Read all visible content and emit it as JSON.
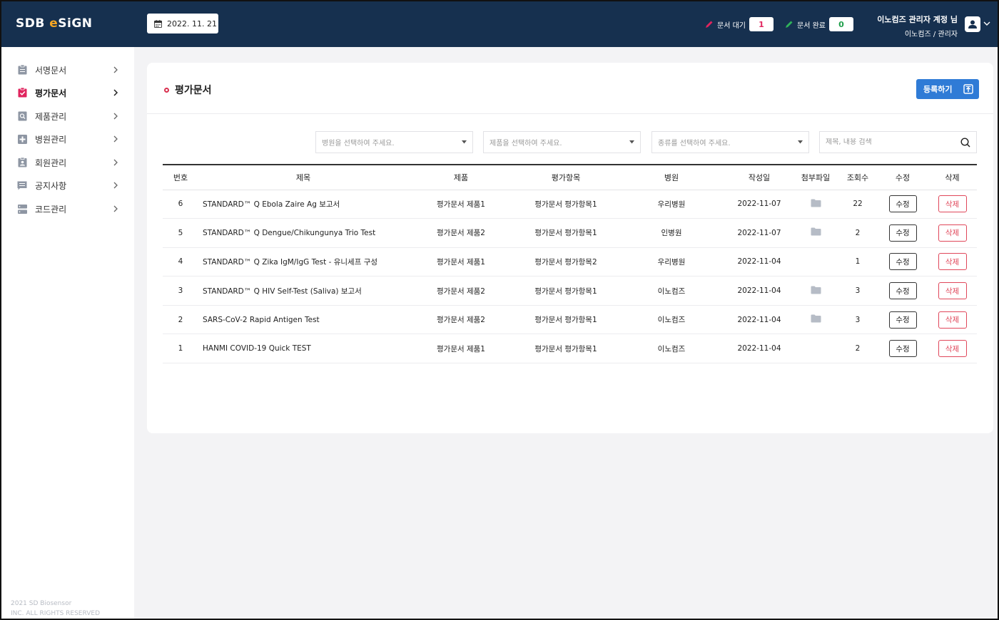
{
  "header": {
    "logo_pre": "SDB ",
    "logo_e": "e",
    "logo_post": "SiGN",
    "date": "2022. 11. 21",
    "wait_label": "문서 대기",
    "wait_count": "1",
    "done_label": "문서 완료",
    "done_count": "0",
    "user_name": "이노컴즈 관리자 계정 님",
    "user_role": "이노컴즈 / 관리자"
  },
  "sidebar": {
    "items": [
      {
        "label": "서명문서",
        "icon": "clipboard-icon"
      },
      {
        "label": "평가문서",
        "icon": "clipboard-check-icon"
      },
      {
        "label": "제품관리",
        "icon": "search-doc-icon"
      },
      {
        "label": "병원관리",
        "icon": "hospital-plus-icon"
      },
      {
        "label": "회원관리",
        "icon": "member-card-icon"
      },
      {
        "label": "공지사항",
        "icon": "notice-icon"
      },
      {
        "label": "코드관리",
        "icon": "server-icon"
      }
    ],
    "copyright_line1": "2021 SD Biosensor",
    "copyright_line2": "INC. ALL RIGHTS RESERVED"
  },
  "main": {
    "title": "평가문서",
    "register_label": "등록하기",
    "filters": {
      "hospital": "병원을 선택하여 주세요.",
      "product": "제품을 선택하여 주세요.",
      "type": "종류를 선택하여 주세요.",
      "search_placeholder": "제목, 내용 검색"
    },
    "columns": [
      "번호",
      "제목",
      "제품",
      "평가항목",
      "병원",
      "작성일",
      "첨부파일",
      "조회수",
      "수정",
      "삭제"
    ],
    "edit_label": "수정",
    "delete_label": "삭제",
    "rows": [
      {
        "no": "6",
        "title": "STANDARD™ Q Ebola Zaire Ag 보고서",
        "product": "평가문서 제품1",
        "item": "평가문서 평가항목1",
        "hospital": "우리병원",
        "date": "2022-11-07",
        "attach": true,
        "views": "22"
      },
      {
        "no": "5",
        "title": "STANDARD™ Q Dengue/Chikungunya Trio Test",
        "product": "평가문서 제품2",
        "item": "평가문서 평가항목1",
        "hospital": "인병원",
        "date": "2022-11-07",
        "attach": true,
        "views": "2"
      },
      {
        "no": "4",
        "title": "STANDARD™ Q Zika IgM/IgG Test - 유니세프 구성",
        "product": "평가문서 제품1",
        "item": "평가문서 평가항목2",
        "hospital": "우리병원",
        "date": "2022-11-04",
        "attach": false,
        "views": "1"
      },
      {
        "no": "3",
        "title": "STANDARD™ Q HIV Self-Test (Saliva) 보고서",
        "product": "평가문서 제품2",
        "item": "평가문서 평가항목1",
        "hospital": "이노컴즈",
        "date": "2022-11-04",
        "attach": true,
        "views": "3"
      },
      {
        "no": "2",
        "title": "SARS-CoV-2 Rapid Antigen Test",
        "product": "평가문서 제품2",
        "item": "평가문서 평가항목1",
        "hospital": "이노컴즈",
        "date": "2022-11-04",
        "attach": true,
        "views": "3"
      },
      {
        "no": "1",
        "title": "HANMI COVID-19 Quick TEST",
        "product": "평가문서 제품1",
        "item": "평가문서 평가항목1",
        "hospital": "이노컴즈",
        "date": "2022-11-04",
        "attach": false,
        "views": "2"
      }
    ]
  },
  "colors": {
    "header_bg": "#16304f",
    "accent_blue": "#2f7bd6",
    "delete_red": "#e0475a",
    "active_icon": "#e0245e"
  }
}
